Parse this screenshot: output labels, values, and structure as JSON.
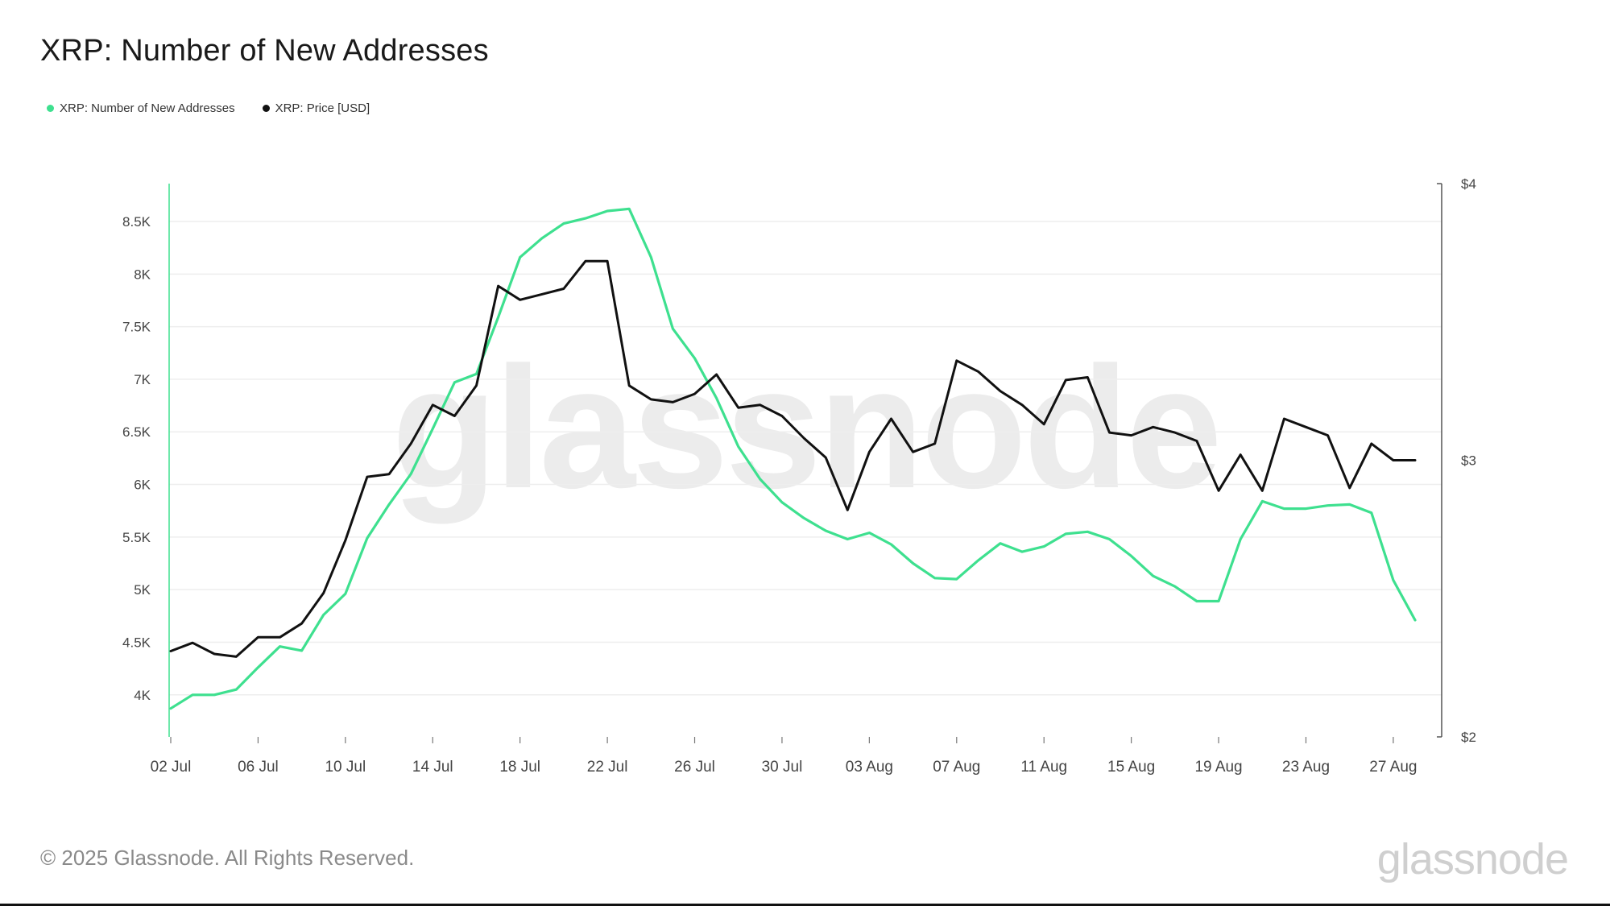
{
  "title": "XRP: Number of New Addresses",
  "footer": "© 2025 Glassnode. All Rights Reserved.",
  "brand": "glassnode",
  "watermark": "glassnode",
  "colors": {
    "addresses": "#3ee08f",
    "price": "#111111",
    "grid": "#eeeeee"
  },
  "chart_data": {
    "type": "line",
    "legend_position": "top-left",
    "grid": true,
    "x": [
      "2025-07-02",
      "2025-07-03",
      "2025-07-04",
      "2025-07-05",
      "2025-07-06",
      "2025-07-07",
      "2025-07-08",
      "2025-07-09",
      "2025-07-10",
      "2025-07-11",
      "2025-07-12",
      "2025-07-13",
      "2025-07-14",
      "2025-07-15",
      "2025-07-16",
      "2025-07-17",
      "2025-07-18",
      "2025-07-19",
      "2025-07-20",
      "2025-07-21",
      "2025-07-22",
      "2025-07-23",
      "2025-07-24",
      "2025-07-25",
      "2025-07-26",
      "2025-07-27",
      "2025-07-28",
      "2025-07-29",
      "2025-07-30",
      "2025-07-31",
      "2025-08-01",
      "2025-08-02",
      "2025-08-03",
      "2025-08-04",
      "2025-08-05",
      "2025-08-06",
      "2025-08-07",
      "2025-08-08",
      "2025-08-09",
      "2025-08-10",
      "2025-08-11",
      "2025-08-12",
      "2025-08-13",
      "2025-08-14",
      "2025-08-15",
      "2025-08-16",
      "2025-08-17",
      "2025-08-18",
      "2025-08-19",
      "2025-08-20",
      "2025-08-21",
      "2025-08-22",
      "2025-08-23",
      "2025-08-24",
      "2025-08-25",
      "2025-08-26",
      "2025-08-27",
      "2025-08-28"
    ],
    "x_ticks": [
      "02 Jul",
      "06 Jul",
      "10 Jul",
      "14 Jul",
      "18 Jul",
      "22 Jul",
      "26 Jul",
      "30 Jul",
      "03 Aug",
      "07 Aug",
      "11 Aug",
      "15 Aug",
      "19 Aug",
      "23 Aug",
      "27 Aug"
    ],
    "y_left": {
      "ticks": [
        "4K",
        "4.5K",
        "5K",
        "5.5K",
        "6K",
        "6.5K",
        "7K",
        "7.5K",
        "8K",
        "8.5K"
      ],
      "range": [
        3600,
        8860
      ]
    },
    "y_right": {
      "ticks": [
        "$2",
        "$3",
        "$4"
      ],
      "range": [
        2,
        4
      ]
    },
    "series": [
      {
        "name": "XRP: Number of New Addresses",
        "axis": "left",
        "values": [
          3870,
          4000,
          4000,
          4050,
          4260,
          4460,
          4420,
          4760,
          4960,
          5490,
          5810,
          6100,
          6530,
          6970,
          7050,
          7590,
          8160,
          8340,
          8480,
          8530,
          8600,
          8620,
          8160,
          7480,
          7200,
          6820,
          6360,
          6050,
          5830,
          5680,
          5560,
          5480,
          5540,
          5430,
          5250,
          5110,
          5100,
          5280,
          5440,
          5360,
          5410,
          5530,
          5550,
          5480,
          5320,
          5130,
          5030,
          4890,
          4890,
          5480,
          5840,
          5770,
          5770,
          5800,
          5810,
          5730,
          5090,
          4710
        ]
      },
      {
        "name": "XRP: Price [USD]",
        "axis": "right",
        "values": [
          2.31,
          2.34,
          2.3,
          2.29,
          2.36,
          2.36,
          2.41,
          2.52,
          2.71,
          2.94,
          2.95,
          3.06,
          3.2,
          3.16,
          3.27,
          3.63,
          3.58,
          3.6,
          3.62,
          3.72,
          3.72,
          3.27,
          3.22,
          3.21,
          3.24,
          3.31,
          3.19,
          3.2,
          3.16,
          3.08,
          3.01,
          2.82,
          3.03,
          3.15,
          3.03,
          3.06,
          3.36,
          3.32,
          3.25,
          3.2,
          3.13,
          3.29,
          3.3,
          3.1,
          3.09,
          3.12,
          3.1,
          3.07,
          2.89,
          3.02,
          2.89,
          3.15,
          3.12,
          3.09,
          2.9,
          3.06,
          3.0,
          3.0
        ]
      }
    ]
  }
}
